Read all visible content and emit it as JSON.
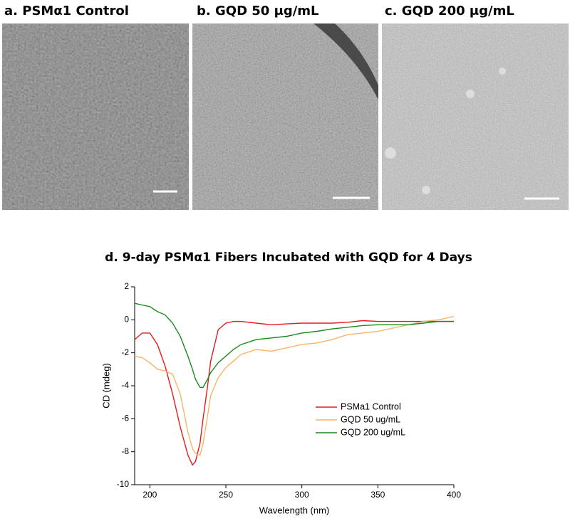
{
  "panels": [
    {
      "label": "a. PSMα1 Control"
    },
    {
      "label": "b. GQD 50 μg/mL"
    },
    {
      "label": "c. GQD 200 μg/mL"
    }
  ],
  "chart_data": {
    "type": "line",
    "title": "d. 9-day PSMα1 Fibers Incubated with GQD for 4 Days",
    "xlabel": "Wavelength (nm)",
    "ylabel": "CD (mdeg)",
    "x": [
      190,
      195,
      200,
      205,
      210,
      215,
      220,
      225,
      228,
      230,
      233,
      235,
      238,
      240,
      245,
      250,
      255,
      260,
      270,
      280,
      290,
      300,
      310,
      320,
      330,
      340,
      350,
      360,
      370,
      380,
      390,
      400
    ],
    "series": [
      {
        "name": "PSMa1 Control",
        "color": "#e8191c",
        "values": [
          -1.2,
          -0.8,
          -0.8,
          -1.5,
          -2.8,
          -4.5,
          -6.5,
          -8.2,
          -8.8,
          -8.6,
          -7.5,
          -6.0,
          -4.0,
          -2.5,
          -0.6,
          -0.2,
          -0.1,
          -0.1,
          -0.2,
          -0.3,
          -0.25,
          -0.2,
          -0.2,
          -0.2,
          -0.15,
          -0.05,
          -0.1,
          -0.1,
          -0.1,
          -0.1,
          -0.1,
          -0.1
        ]
      },
      {
        "name": "GQD 50 ug/mL",
        "color": "#f9b46a",
        "values": [
          -2.2,
          -2.3,
          -2.6,
          -3.0,
          -3.1,
          -3.3,
          -4.5,
          -6.8,
          -7.8,
          -8.1,
          -8.2,
          -7.5,
          -5.8,
          -4.6,
          -3.5,
          -2.9,
          -2.5,
          -2.1,
          -1.8,
          -1.9,
          -1.7,
          -1.5,
          -1.4,
          -1.2,
          -0.9,
          -0.8,
          -0.7,
          -0.5,
          -0.3,
          -0.1,
          0.0,
          0.2
        ]
      },
      {
        "name": "GQD 200 ug/mL",
        "color": "#1a8a1a",
        "values": [
          1.0,
          0.9,
          0.8,
          0.5,
          0.3,
          -0.2,
          -1.0,
          -2.2,
          -3.0,
          -3.6,
          -4.1,
          -4.1,
          -3.6,
          -3.2,
          -2.6,
          -2.2,
          -1.8,
          -1.5,
          -1.2,
          -1.1,
          -1.0,
          -0.8,
          -0.7,
          -0.55,
          -0.45,
          -0.35,
          -0.3,
          -0.3,
          -0.3,
          -0.2,
          -0.1,
          -0.1
        ]
      }
    ],
    "xlim": [
      190,
      400
    ],
    "xticks": [
      200,
      250,
      300,
      350,
      400
    ],
    "ylim": [
      -10,
      2
    ],
    "yticks": [
      -10,
      -8,
      -6,
      -4,
      -2,
      0,
      2
    ],
    "grid": false
  }
}
